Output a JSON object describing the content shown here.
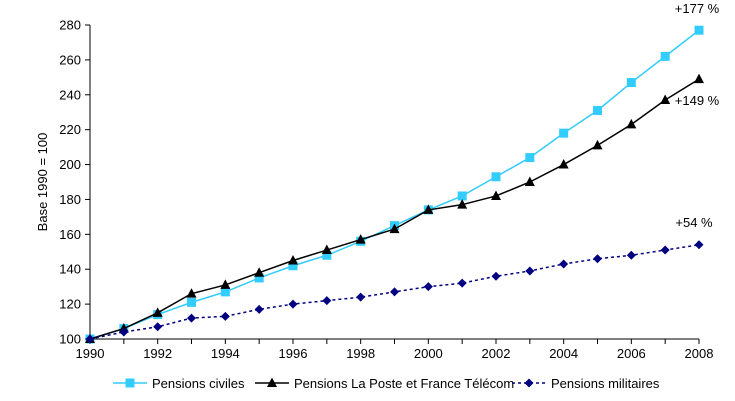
{
  "chart_data": {
    "type": "line",
    "ylabel": "Base 1990 = 100",
    "x": [
      1990,
      1991,
      1992,
      1993,
      1994,
      1995,
      1996,
      1997,
      1998,
      1999,
      2000,
      2001,
      2002,
      2003,
      2004,
      2005,
      2006,
      2007,
      2008
    ],
    "xticks": [
      "1990",
      "1992",
      "1994",
      "1996",
      "1998",
      "2000",
      "2002",
      "2004",
      "2006",
      "2008"
    ],
    "yticks": [
      "100",
      "120",
      "140",
      "160",
      "180",
      "200",
      "220",
      "240",
      "260",
      "280"
    ],
    "xlim": [
      1990,
      2008
    ],
    "ylim": [
      100,
      280
    ],
    "grid": false,
    "legend_position": "bottom",
    "series": [
      {
        "name": "Pensions civiles",
        "color": "#33CCFF",
        "marker": "square",
        "dashed": false,
        "values": [
          100,
          106,
          114,
          121,
          127,
          135,
          142,
          148,
          156,
          165,
          174,
          182,
          193,
          204,
          218,
          231,
          247,
          262,
          277
        ]
      },
      {
        "name": "Pensions La Poste et France Télécom",
        "color": "#000000",
        "marker": "triangle",
        "dashed": false,
        "values": [
          100,
          106,
          115,
          126,
          131,
          138,
          145,
          151,
          157,
          163,
          174,
          177,
          182,
          190,
          200,
          211,
          223,
          237,
          249
        ]
      },
      {
        "name": "Pensions militaires",
        "color": "#000080",
        "marker": "diamond",
        "dashed": true,
        "values": [
          100,
          104,
          107,
          112,
          113,
          117,
          120,
          122,
          124,
          127,
          130,
          132,
          136,
          139,
          143,
          146,
          148,
          151,
          154
        ]
      }
    ],
    "annotations": [
      {
        "text": "+177 %",
        "series": 0
      },
      {
        "text": "+149 %",
        "series": 1
      },
      {
        "text": "+54 %",
        "series": 2
      }
    ]
  }
}
